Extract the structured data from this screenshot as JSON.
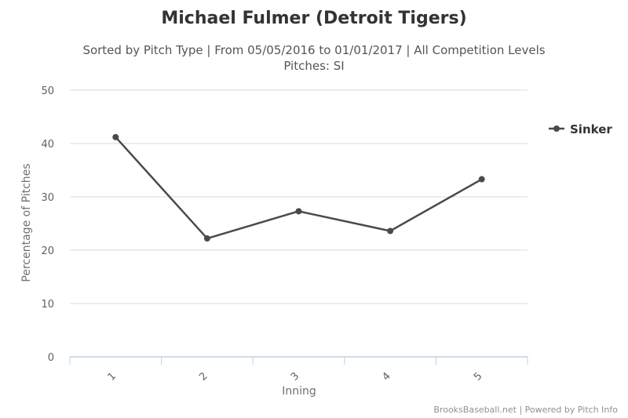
{
  "chart_data": {
    "type": "line",
    "title": "Michael Fulmer (Detroit Tigers)",
    "subtitle_line1": "Sorted by Pitch Type | From 05/05/2016 to 01/01/2017 | All Competition Levels",
    "subtitle_line2": "Pitches: SI",
    "xlabel": "Inning",
    "ylabel": "Percentage of Pitches",
    "categories": [
      "1",
      "2",
      "3",
      "4",
      "5"
    ],
    "ylim": [
      0,
      50
    ],
    "yticks": [
      "0",
      "10",
      "20",
      "30",
      "40",
      "50"
    ],
    "grid": true,
    "legend_position": "right",
    "series": [
      {
        "name": "Sinker",
        "color": "#4a4a4a",
        "values": [
          41.2,
          22.2,
          27.3,
          23.6,
          33.3
        ]
      }
    ]
  },
  "credits": "BrooksBaseball.net | Powered by Pitch Info",
  "colors": {
    "grid": "#d8d8d8",
    "axis": "#c0d0e0",
    "line": "#4a4a4a"
  }
}
